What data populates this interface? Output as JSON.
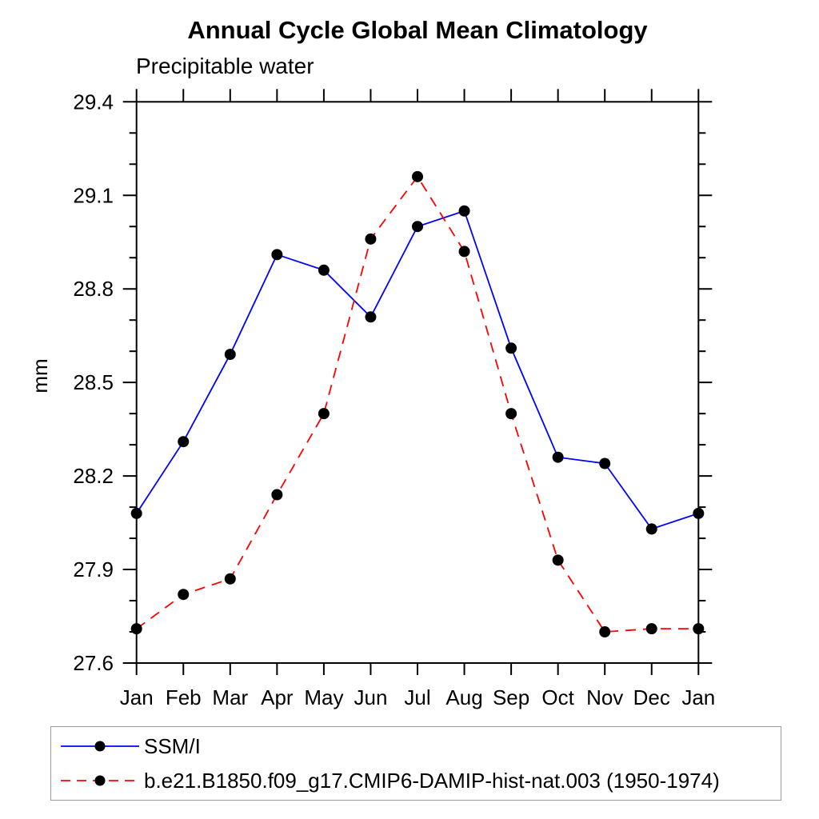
{
  "chart_data": {
    "type": "line",
    "title": "Annual Cycle Global Mean Climatology",
    "subtitle": "Precipitable water",
    "ylabel": "mm",
    "xlabel": "",
    "categories": [
      "Jan",
      "Feb",
      "Mar",
      "Apr",
      "May",
      "Jun",
      "Jul",
      "Aug",
      "Sep",
      "Oct",
      "Nov",
      "Dec",
      "Jan"
    ],
    "ylim": [
      27.6,
      29.4
    ],
    "ytick_major": 0.3,
    "ytick_minor": 0.1,
    "grid": false,
    "legend_position": "bottom-left",
    "series": [
      {
        "name": "SSM/I",
        "color": "#0000ff",
        "style": "solid",
        "marker": "circle",
        "marker_color": "#000000",
        "values": [
          28.08,
          28.31,
          28.59,
          28.91,
          28.86,
          28.71,
          29.0,
          29.05,
          28.61,
          28.26,
          28.24,
          28.03,
          28.08
        ]
      },
      {
        "name": "b.e21.B1850.f09_g17.CMIP6-DAMIP-hist-nat.003 (1950-1974)",
        "color": "#ff0000",
        "style": "dashed",
        "marker": "circle",
        "marker_color": "#000000",
        "values": [
          27.71,
          27.82,
          27.87,
          28.14,
          28.4,
          28.96,
          29.16,
          28.92,
          28.4,
          27.93,
          27.7,
          27.71,
          27.71
        ]
      }
    ],
    "colors": {
      "axis": "#000000",
      "text": "#000000",
      "legend_border": "#9a9a9a"
    }
  }
}
